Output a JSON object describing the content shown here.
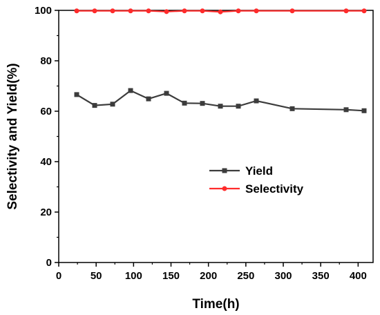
{
  "chart_data": {
    "type": "line",
    "xlabel": "Time(h)",
    "ylabel": "Selectivity and Yield(%)",
    "xlim": [
      0,
      420
    ],
    "ylim": [
      0,
      100
    ],
    "xticks": [
      0,
      50,
      100,
      150,
      200,
      250,
      300,
      350,
      400
    ],
    "yticks": [
      0,
      20,
      40,
      60,
      80,
      100
    ],
    "grid": false,
    "legend_position": "center-right",
    "series": [
      {
        "name": "Yield",
        "color": "#3c3c3c",
        "marker": "square",
        "x": [
          24,
          48,
          72,
          96,
          120,
          144,
          168,
          192,
          216,
          240,
          264,
          312,
          384,
          408
        ],
        "y": [
          66.6,
          62.3,
          62.8,
          68.2,
          64.9,
          67.1,
          63.2,
          63.1,
          62.0,
          62.0,
          64.1,
          61.0,
          60.6,
          60.2
        ]
      },
      {
        "name": "Selectivity",
        "color": "#ff2b2b",
        "marker": "circle",
        "x": [
          24,
          48,
          72,
          96,
          120,
          144,
          168,
          192,
          216,
          240,
          264,
          312,
          384,
          408
        ],
        "y": [
          99.8,
          99.8,
          99.8,
          99.8,
          99.8,
          99.5,
          99.8,
          99.8,
          99.4,
          99.8,
          99.8,
          99.8,
          99.8,
          99.8
        ]
      }
    ]
  }
}
